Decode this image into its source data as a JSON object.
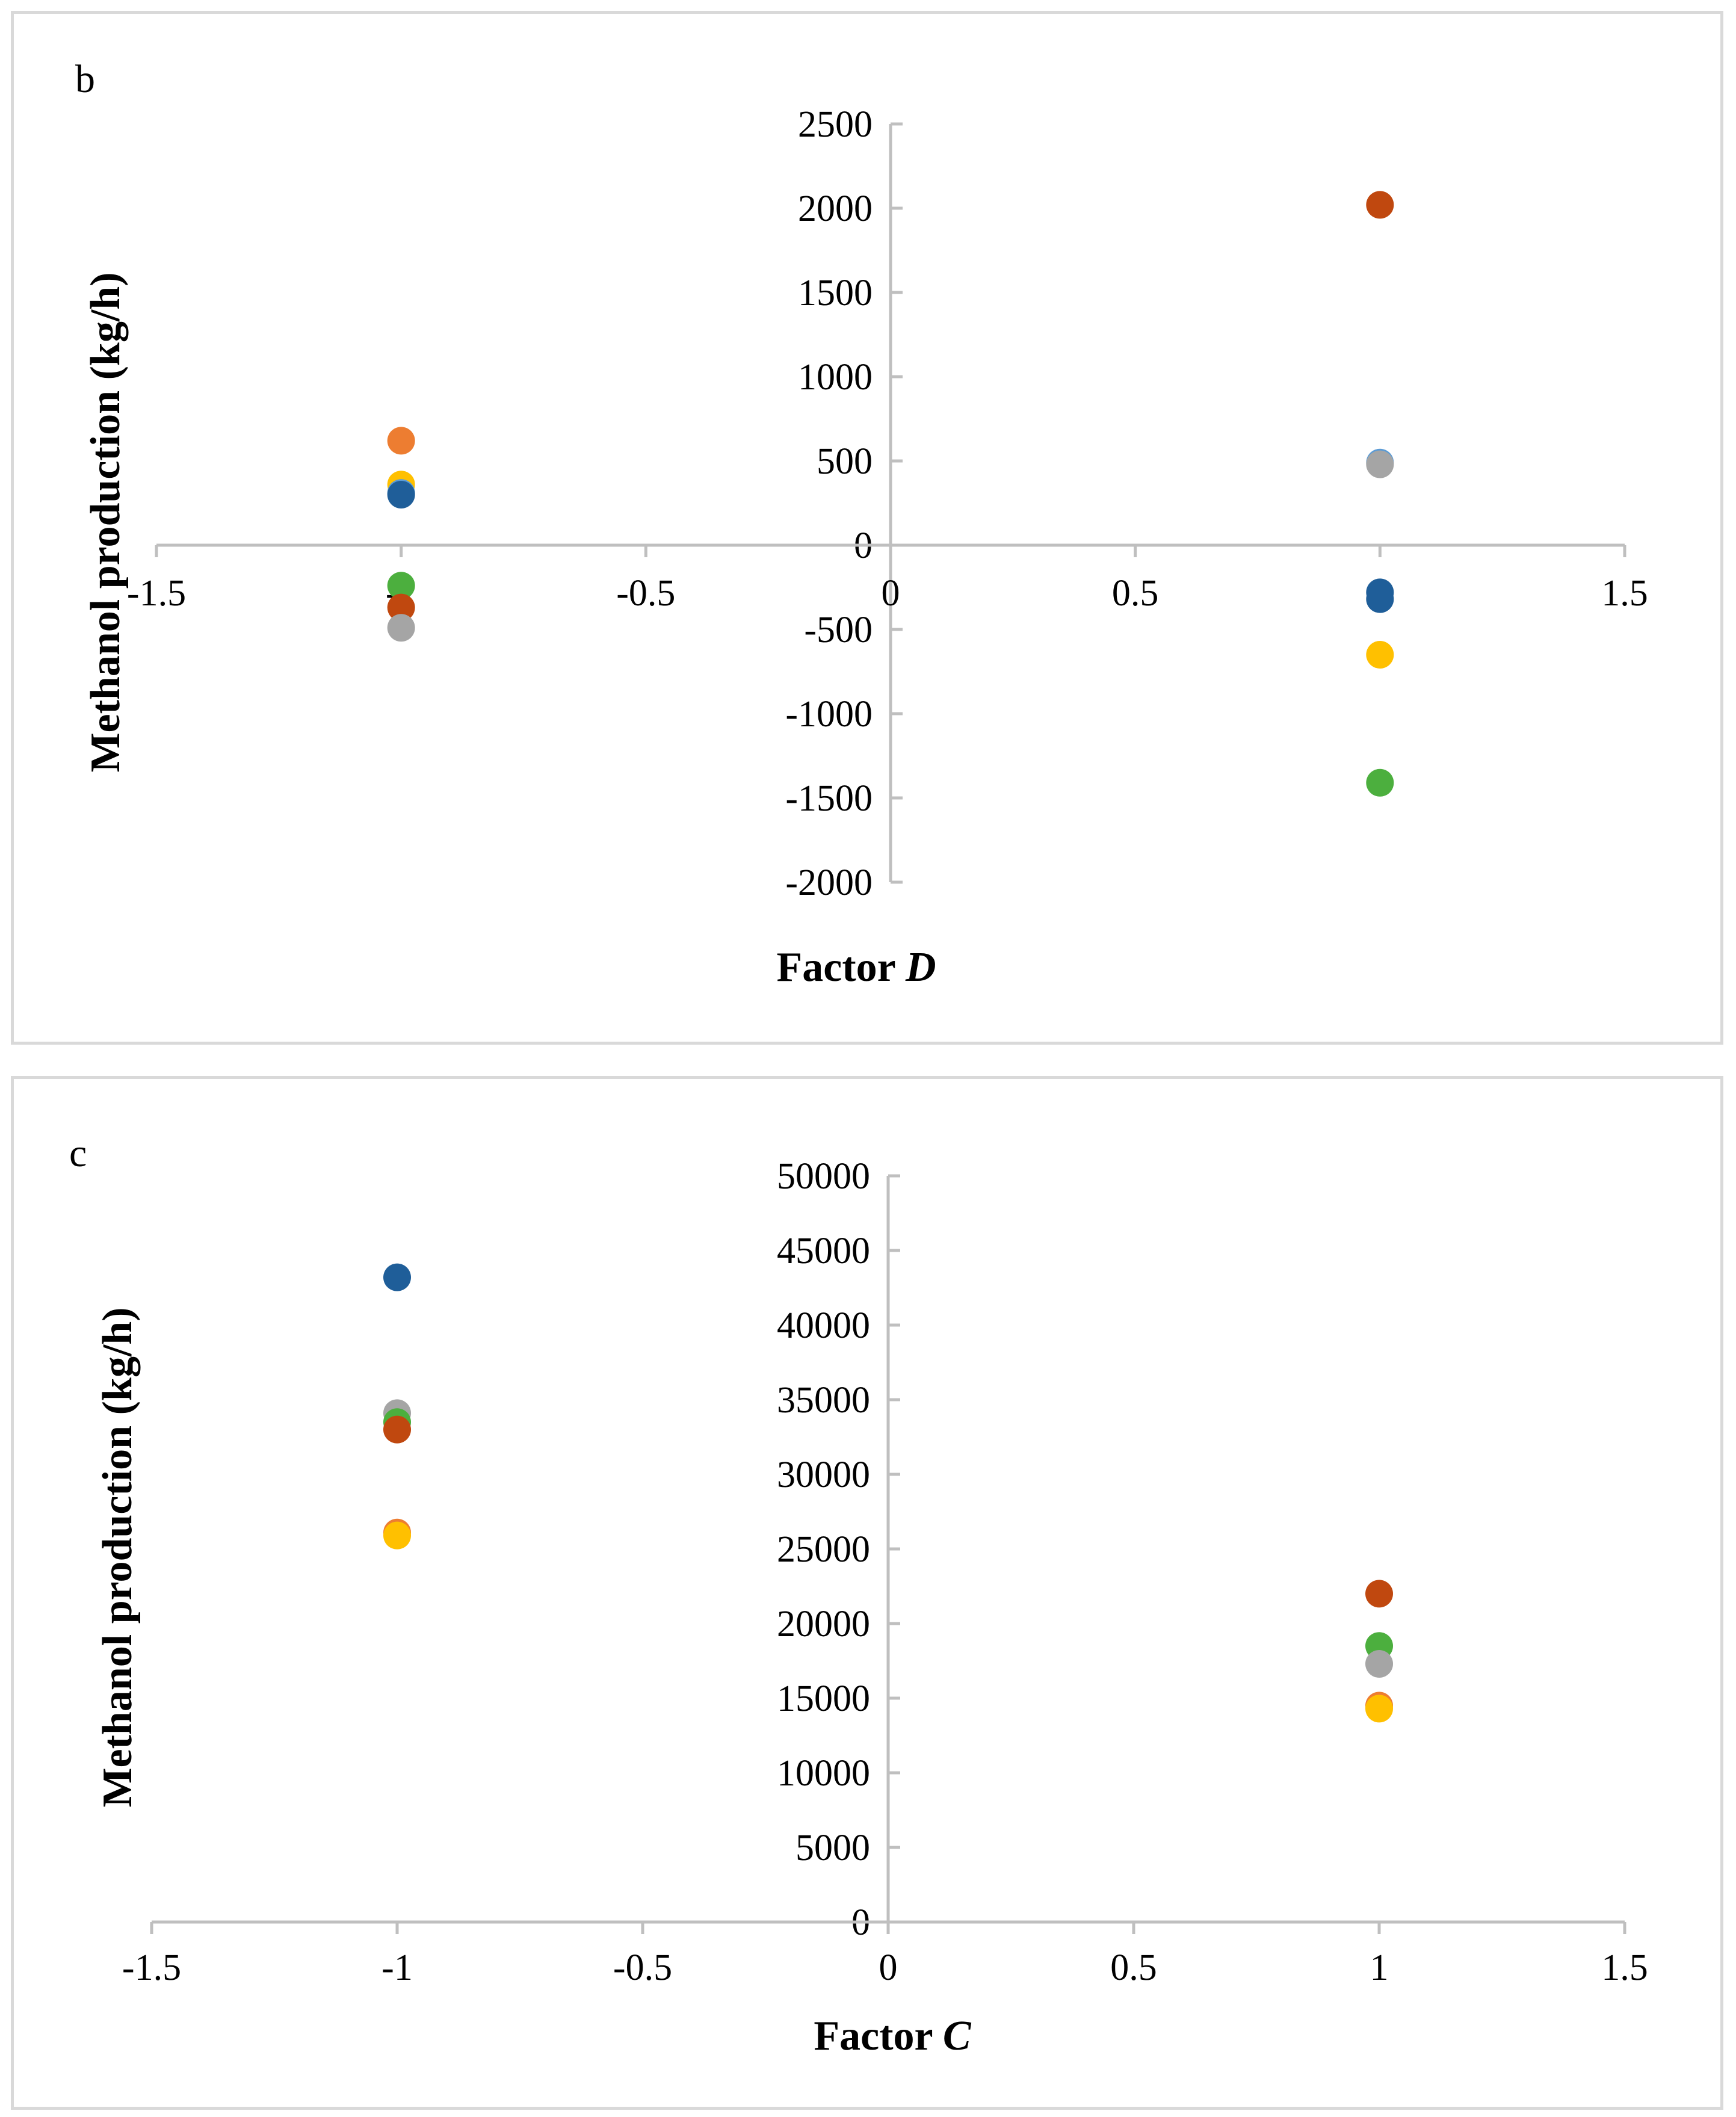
{
  "chart_data": [
    {
      "type": "scatter",
      "panel_label": "b",
      "xlabel": "Factor",
      "xlabel_var": "D",
      "ylabel": "Methanol production (kg/h)",
      "xlim": [
        -1.5,
        1.5
      ],
      "ylim": [
        -2000,
        2500
      ],
      "x_ticks": [
        -1.5,
        -1,
        -0.5,
        0,
        0.5,
        1,
        1.5
      ],
      "x_tick_labels": [
        "-1.5",
        "-1",
        "-0.5",
        "0",
        "0.5",
        "1",
        "1.5"
      ],
      "y_ticks": [
        -2000,
        -1500,
        -1000,
        -500,
        0,
        500,
        1000,
        1500,
        2000,
        2500
      ],
      "y_tick_labels": [
        "-2000",
        "-1500",
        "-1000",
        "-500",
        "0",
        "500",
        "1000",
        "1500",
        "2000",
        "2500"
      ],
      "grid": false,
      "legend": "none",
      "points": [
        {
          "x": -1,
          "y": 620,
          "color": "#ED7D31"
        },
        {
          "x": -1,
          "y": 360,
          "color": "#FFC000"
        },
        {
          "x": -1,
          "y": 310,
          "color": "#5B9BD5"
        },
        {
          "x": -1,
          "y": 300,
          "color": "#1F5E99"
        },
        {
          "x": -1,
          "y": -240,
          "color": "#4CAF3E"
        },
        {
          "x": -1,
          "y": -370,
          "color": "#C0480F"
        },
        {
          "x": -1,
          "y": -490,
          "color": "#A5A5A5"
        },
        {
          "x": 1,
          "y": 2020,
          "color": "#C0480F"
        },
        {
          "x": 1,
          "y": 490,
          "color": "#5B9BD5"
        },
        {
          "x": 1,
          "y": 480,
          "color": "#A5A5A5"
        },
        {
          "x": 1,
          "y": -280,
          "color": "#1F5E99"
        },
        {
          "x": 1,
          "y": -320,
          "color": "#1F5E99"
        },
        {
          "x": 1,
          "y": -650,
          "color": "#FFC000"
        },
        {
          "x": 1,
          "y": -1410,
          "color": "#4CAF3E"
        }
      ]
    },
    {
      "type": "scatter",
      "panel_label": "c",
      "xlabel": "Factor",
      "xlabel_var": "C",
      "ylabel": "Methanol production (kg/h)",
      "xlim": [
        -1.5,
        1.5
      ],
      "ylim": [
        0,
        50000
      ],
      "x_ticks": [
        -1.5,
        -1,
        -0.5,
        0,
        0.5,
        1,
        1.5
      ],
      "x_tick_labels": [
        "-1.5",
        "-1",
        "-0.5",
        "0",
        "0.5",
        "1",
        "1.5"
      ],
      "y_ticks": [
        0,
        5000,
        10000,
        15000,
        20000,
        25000,
        30000,
        35000,
        40000,
        45000,
        50000
      ],
      "y_tick_labels": [
        "0",
        "5000",
        "10000",
        "15000",
        "20000",
        "25000",
        "30000",
        "35000",
        "40000",
        "45000",
        "50000"
      ],
      "grid": false,
      "legend": "none",
      "points": [
        {
          "x": -1,
          "y": 43200,
          "color": "#1F5E99"
        },
        {
          "x": -1,
          "y": 34100,
          "color": "#A5A5A5"
        },
        {
          "x": -1,
          "y": 33500,
          "color": "#4CAF3E"
        },
        {
          "x": -1,
          "y": 33000,
          "color": "#C0480F"
        },
        {
          "x": -1,
          "y": 26100,
          "color": "#ED7D31"
        },
        {
          "x": -1,
          "y": 25900,
          "color": "#FFC000"
        },
        {
          "x": 1,
          "y": 22000,
          "color": "#C0480F"
        },
        {
          "x": 1,
          "y": 18500,
          "color": "#4CAF3E"
        },
        {
          "x": 1,
          "y": 17300,
          "color": "#A5A5A5"
        },
        {
          "x": 1,
          "y": 14500,
          "color": "#ED7D31"
        },
        {
          "x": 1,
          "y": 14300,
          "color": "#FFC000"
        }
      ]
    }
  ]
}
